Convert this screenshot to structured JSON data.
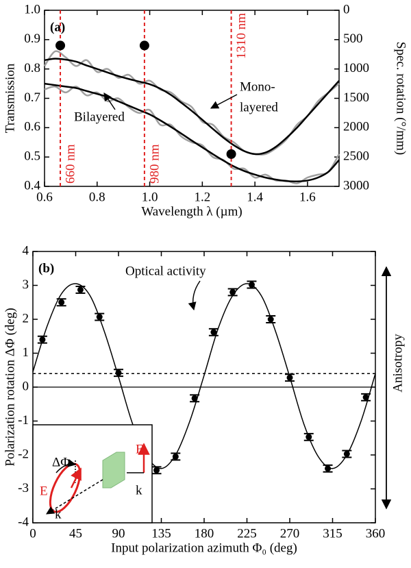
{
  "chart_data": [
    {
      "type": "line",
      "label": "(a)",
      "xlabel": "Wavelength λ (µm)",
      "ylabel": "Transmission",
      "y2label": "Spec. rotation (°/mm)",
      "xlim": [
        0.6,
        1.72
      ],
      "xticks": [
        0.6,
        0.8,
        {
          "value": 1,
          "label": "1.0"
        },
        1.2,
        1.4,
        1.6
      ],
      "ylim": [
        0.4,
        1
      ],
      "yticks": [
        0.4,
        0.5,
        0.6,
        0.7,
        0.8,
        0.9,
        {
          "value": 1,
          "label": "1.0"
        }
      ],
      "y2lim": [
        3000,
        0
      ],
      "y2ticks": [
        0,
        500,
        1000,
        1500,
        2000,
        2500,
        3000
      ],
      "x": [
        0.6,
        0.64,
        0.68,
        0.72,
        0.76,
        0.8,
        0.84,
        0.88,
        0.92,
        0.96,
        1.0,
        1.04,
        1.08,
        1.12,
        1.16,
        1.2,
        1.24,
        1.28,
        1.32,
        1.36,
        1.4,
        1.44,
        1.48,
        1.52,
        1.56,
        1.6,
        1.64,
        1.68,
        1.72
      ],
      "series": [
        {
          "color": "#a0a0a0",
          "values": [
            0.81,
            0.86,
            0.84,
            0.81,
            0.83,
            0.79,
            0.8,
            0.77,
            0.78,
            0.75,
            0.76,
            0.73,
            0.72,
            0.69,
            0.67,
            0.62,
            0.61,
            0.57,
            0.55,
            0.52,
            0.51,
            0.51,
            0.53,
            0.56,
            0.61,
            0.64,
            0.69,
            0.72,
            0.75
          ]
        },
        {
          "color": "#a0a0a0",
          "values": [
            0.73,
            0.74,
            0.72,
            0.74,
            0.71,
            0.72,
            0.69,
            0.7,
            0.67,
            0.65,
            0.66,
            0.61,
            0.61,
            0.57,
            0.55,
            0.54,
            0.5,
            0.49,
            0.46,
            0.46,
            0.43,
            0.44,
            0.42,
            0.42,
            0.41,
            0.43,
            0.44,
            0.45,
            0.51
          ]
        },
        {
          "color": "#000000",
          "values": [
            0.83,
            0.835,
            0.832,
            0.825,
            0.812,
            0.8,
            0.788,
            0.776,
            0.766,
            0.757,
            0.748,
            0.733,
            0.712,
            0.685,
            0.657,
            0.627,
            0.596,
            0.566,
            0.54,
            0.52,
            0.51,
            0.515,
            0.535,
            0.565,
            0.6,
            0.64,
            0.68,
            0.72,
            0.76
          ]
        },
        {
          "color": "#000000",
          "values": [
            0.75,
            0.745,
            0.74,
            0.735,
            0.725,
            0.715,
            0.705,
            0.69,
            0.675,
            0.66,
            0.645,
            0.625,
            0.603,
            0.58,
            0.556,
            0.533,
            0.51,
            0.488,
            0.468,
            0.452,
            0.44,
            0.43,
            0.423,
            0.418,
            0.417,
            0.42,
            0.43,
            0.45,
            0.49
          ]
        }
      ],
      "points": {
        "axis": "y2",
        "color": "#000000",
        "x": [
          0.66,
          0.98,
          1.31
        ],
        "values": [
          600,
          600,
          2450
        ]
      },
      "vlines": {
        "color": "#e02020",
        "x": [
          0.66,
          0.98,
          1.31
        ],
        "labels": [
          "660 nm",
          "980 nm",
          "1310 nm"
        ]
      },
      "annotations": [
        "Bilayered",
        "Mono-",
        "layered"
      ]
    },
    {
      "type": "errorbar",
      "label": "(b)",
      "xlabel": "Input polarization azimuth Φ₀ (deg)",
      "ylabel": "Polarization rotation ΔΦ (deg)",
      "xlim": [
        0,
        360
      ],
      "xticks": [
        0,
        45,
        90,
        135,
        180,
        225,
        270,
        315,
        360
      ],
      "ylim": [
        -4,
        4
      ],
      "yticks": [
        -4,
        -3,
        -2,
        -1,
        0,
        1,
        2,
        3,
        4
      ],
      "color": "#000000",
      "x": [
        10,
        30,
        50,
        70,
        90,
        110,
        130,
        150,
        170,
        190,
        210,
        230,
        250,
        270,
        290,
        310,
        330,
        350
      ],
      "values": [
        1.4,
        2.5,
        2.87,
        2.07,
        0.42,
        -1.4,
        -2.45,
        -2.05,
        -0.33,
        1.62,
        2.8,
        3.02,
        2.0,
        0.28,
        -1.47,
        -2.4,
        -1.97,
        -0.3
      ],
      "errors": [
        0.1,
        0.1,
        0.1,
        0.1,
        0.1,
        0.1,
        0.1,
        0.1,
        0.1,
        0.1,
        0.1,
        0.1,
        0.1,
        0.1,
        0.1,
        0.1,
        0.1,
        0.1
      ],
      "fit": {
        "x": [
          0,
          15,
          30,
          45,
          60,
          75,
          90,
          105,
          120,
          135,
          150,
          165,
          180,
          195,
          210,
          225,
          240,
          255,
          270,
          285,
          300,
          315,
          330,
          345,
          360
        ],
        "values": [
          0.45,
          1.8,
          2.75,
          3.05,
          2.7,
          1.65,
          0.3,
          -1.1,
          -2.05,
          -2.4,
          -2.0,
          -1.0,
          0.35,
          1.75,
          2.7,
          3.05,
          2.7,
          1.65,
          0.3,
          -1.1,
          -2.05,
          -2.4,
          -2.0,
          -1.0,
          0.4
        ]
      },
      "hline": 0.4,
      "annotations": [
        "Optical activity",
        "Anisotropy"
      ],
      "inset_labels": [
        "E",
        "k",
        "ΔΦ",
        "E",
        "k"
      ]
    }
  ]
}
